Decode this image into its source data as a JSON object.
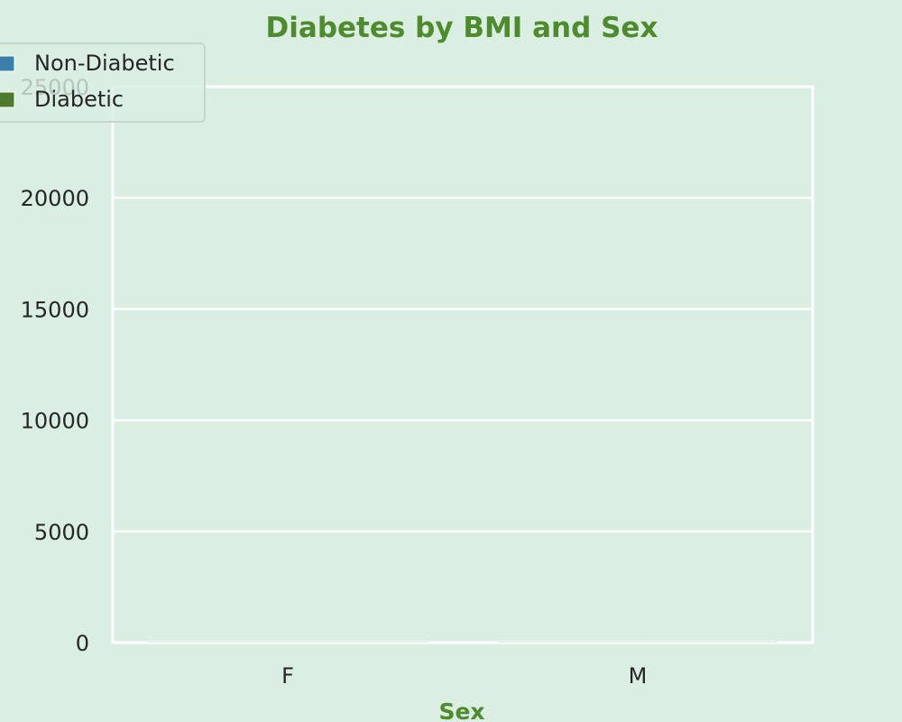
{
  "chart_data": {
    "type": "bar",
    "title": "Diabetes by BMI and Sex",
    "xlabel": "Sex",
    "ylabel": "",
    "categories": [
      "F",
      "M"
    ],
    "series": [
      {
        "name": "Non-Diabetic",
        "values": [
          0,
          0
        ],
        "color": "#3a7fa8"
      },
      {
        "name": "Diabetic",
        "values": [
          0,
          0
        ],
        "color": "#4e7a2e"
      }
    ],
    "ylim": [
      0,
      25000
    ],
    "yticks": [
      "0",
      "5000",
      "10000",
      "15000",
      "20000",
      "25000"
    ],
    "grid": true,
    "legend_position": "top-left",
    "colors": {
      "background": "#daeee2",
      "title": "#4e8a2e",
      "grid": "#ffffff"
    }
  }
}
